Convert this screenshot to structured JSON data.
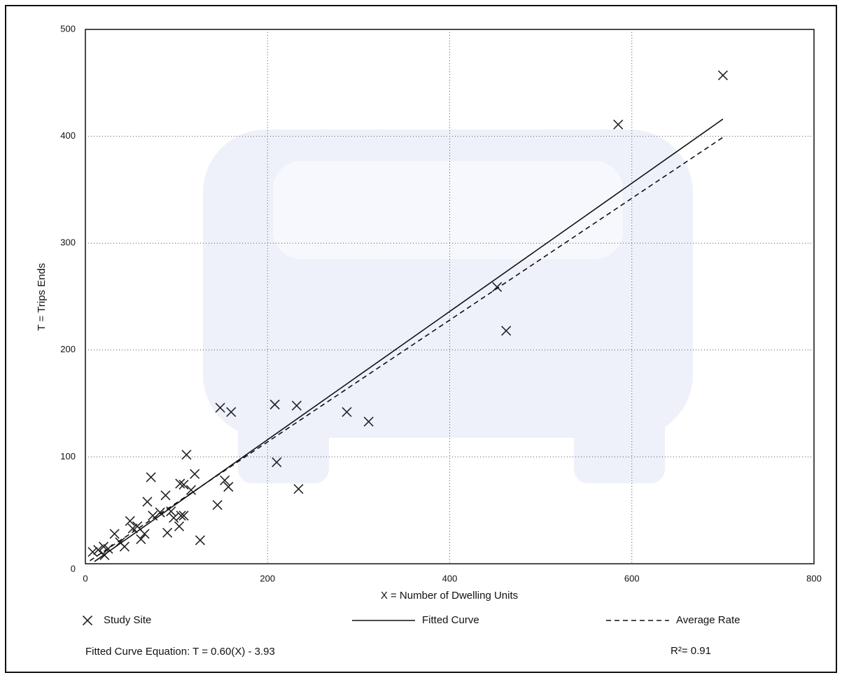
{
  "chart_data": {
    "type": "scatter",
    "x_label": "X = Number of Dwelling Units",
    "y_label": "T = Trips Ends",
    "xlim": [
      0,
      800
    ],
    "xticks": [
      0,
      200,
      400,
      600,
      800
    ],
    "ylim": [
      0,
      500
    ],
    "yticks": [
      0,
      100,
      200,
      300,
      400,
      500
    ],
    "grid": true,
    "series": [
      {
        "name": "Study Site",
        "type": "scatter",
        "marker": "x",
        "color": "#222222",
        "x": [
          700,
          585,
          452,
          462,
          208,
          232,
          148,
          160,
          287,
          311,
          210,
          234,
          111,
          120,
          72,
          153,
          157,
          104,
          108,
          116,
          145,
          68,
          88,
          105,
          108,
          82,
          94,
          97,
          90,
          103,
          74,
          126,
          49,
          52,
          57,
          65,
          61,
          32,
          38,
          43,
          20,
          14,
          8,
          21,
          25
        ],
        "values": [
          457,
          411,
          259,
          218,
          149,
          148,
          146,
          142,
          142,
          133,
          95,
          70,
          102,
          84,
          81,
          78,
          72,
          75,
          74,
          69,
          55,
          58,
          64,
          45,
          45,
          48,
          49,
          43,
          29,
          35,
          45,
          22,
          40,
          33,
          35,
          28,
          23,
          28,
          20,
          16,
          16,
          13,
          11,
          8,
          14
        ]
      },
      {
        "name": "Fitted Curve",
        "type": "line",
        "line_style": "solid",
        "color": "#111111",
        "x": [
          10,
          700
        ],
        "values": [
          2.07,
          416.07
        ]
      },
      {
        "name": "Average Rate",
        "type": "line",
        "line_style": "dashed",
        "color": "#111111",
        "x": [
          5,
          700
        ],
        "values": [
          2.85,
          399
        ]
      }
    ],
    "equation": "Fitted Curve Equation: T = 0.60(X) - 3.93",
    "r_squared": "R²= 0.91"
  }
}
